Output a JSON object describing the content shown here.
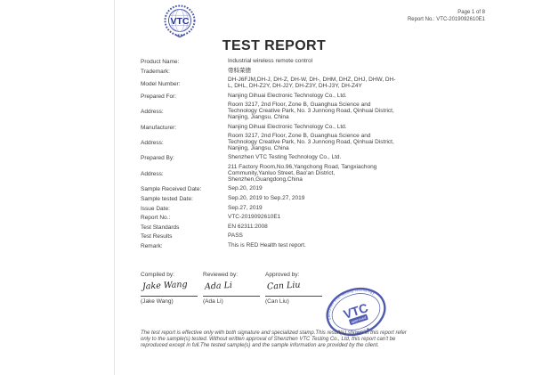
{
  "header": {
    "page_info": "Page 1 of 8",
    "report_no_line": "Report No.: VTC-2019092610E1",
    "logo_text": "VTC"
  },
  "title": "TEST REPORT",
  "report": {
    "fields": [
      {
        "label": "Product Name:",
        "value": "Industrial wireless remote control"
      },
      {
        "label": "Trademark:",
        "value": "帝科荣德"
      },
      {
        "label": "Model Number:",
        "value": "DH-J6FJM,DH-J, DH-Z, DH-W, DH-, DHM, DHZ, DHJ, DHW, DH-L, DHL, DH-Z2Y, DH-J2Y, DH-Z3Y, DH-J3Y, DH-Z4Y"
      },
      {
        "label": "Prepared For:",
        "value": "Nanjing Dihuai Electronic Technology Co., Ltd."
      },
      {
        "label": "Address:",
        "value": "Room 3217, 2nd Floor, Zone B, Guanghua Science and Technology Creative Park, No. 3 Junnong Road, Qinhuai District, Nanjing, Jiangsu, China"
      },
      {
        "label": "Manufacturer:",
        "value": "Nanjing Dihuai Electronic Technology Co., Ltd."
      },
      {
        "label": "Address:",
        "value": "Room 3217, 2nd Floor, Zone B, Guanghua Science and Technology Creative Park, No. 3 Junnong Road, Qinhuai District, Nanjing, Jiangsu, China"
      },
      {
        "label": "Prepared By:",
        "value": "Shenzhen VTC Testing Technology Co., Ltd."
      },
      {
        "label": "Address:",
        "value": "211 Factory Room,No.96,Yangchong Road, Tangxiachong Community,Yanluo Street, Bao'an District, Shenzhen,Guangdong,China"
      },
      {
        "label": "Sample Received Date:",
        "value": "Sep.20, 2019"
      },
      {
        "label": "Sample tested Date:",
        "value": "Sep.20, 2019 to Sep.27, 2019"
      },
      {
        "label": "Issue Date:",
        "value": "Sep.27, 2019"
      },
      {
        "label": "Report No.:",
        "value": "VTC-2019092610E1"
      },
      {
        "label": "Test Standards",
        "value": "EN 62311:2008"
      },
      {
        "label": "Test Results",
        "value": "PASS"
      },
      {
        "label": "Remark:",
        "value": "This is RED Health test report."
      }
    ]
  },
  "signatures": {
    "columns": [
      {
        "role": "Compiled by:",
        "signature": "Jake Wang",
        "name": "(Jake Wang)"
      },
      {
        "role": "Reviewed by:",
        "signature": "Ada Li",
        "name": "(Ada Li)"
      },
      {
        "role": "Approved by:",
        "signature": "Can Liu",
        "name": "(Can Liu)"
      }
    ]
  },
  "stamp": {
    "center_text": "VTC",
    "sub_text": "approved",
    "arc_top": "Shenzhen VTC Testing Technology",
    "arc_bottom": "Co., Ltd.  ◆",
    "color": "#3f4caa"
  },
  "footer": {
    "disclaimer": "The test report is effective only with both signature and specialized stamp.This result(s) shown in this report refer only to the sample(s) tested. Without written approval of Shenzhen VTC Testing Co., Ltd, this report can't be reproduced except in full.The tested sample(s) and the sample information are provided by the client."
  }
}
